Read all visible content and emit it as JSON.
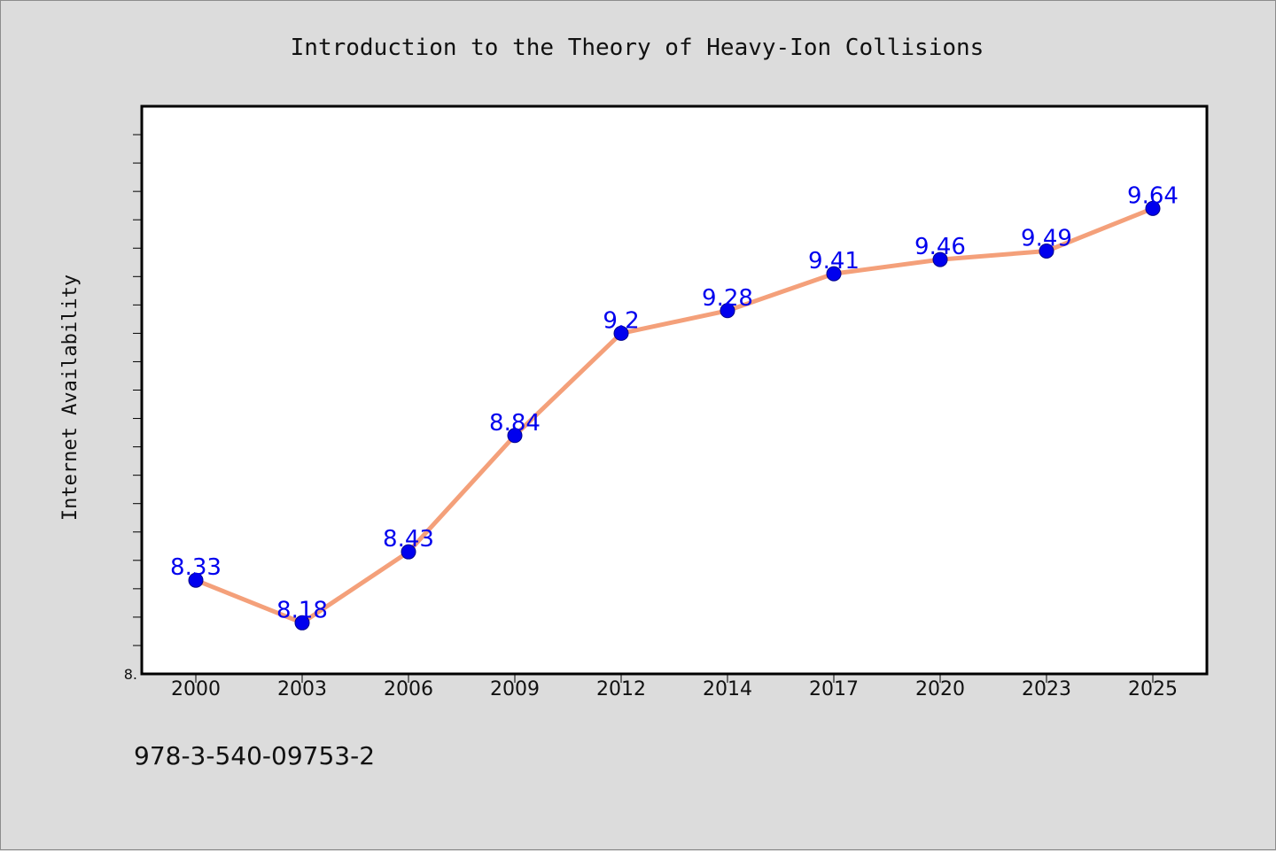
{
  "chart_data": {
    "type": "line",
    "title": "Introduction to the Theory of Heavy-Ion Collisions",
    "xlabel": "",
    "ylabel": "Internet Availability",
    "categories": [
      "2000",
      "2003",
      "2006",
      "2009",
      "2012",
      "2014",
      "2017",
      "2020",
      "2023",
      "2025"
    ],
    "series": [
      {
        "values": [
          8.33,
          8.18,
          8.43,
          8.84,
          9.2,
          9.28,
          9.41,
          9.46,
          9.49,
          9.64
        ]
      }
    ],
    "data_labels": [
      "8.33",
      "8.18",
      "8.43",
      "8.84",
      "9.2",
      "9.28",
      "9.41",
      "9.46",
      "9.49",
      "9.64"
    ],
    "ylim": [
      8.0,
      10.0
    ],
    "y_tick_labels": [
      "8."
    ],
    "grid": false,
    "legend": "none",
    "colors": {
      "line": "#f4a07a",
      "marker": "#0000ee",
      "label": "#0000ee",
      "background": "#dcdcdc",
      "plot_background": "#ffffff"
    }
  },
  "footer": {
    "isbn": "978-3-540-09753-2"
  }
}
